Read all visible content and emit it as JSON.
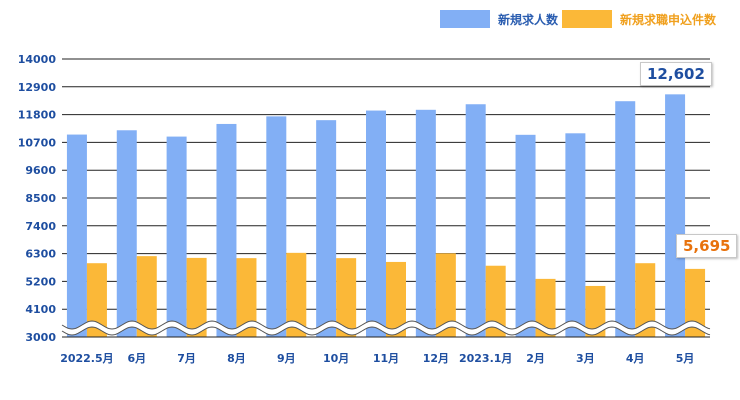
{
  "legend": {
    "job_offers": "新規求人数",
    "applications": "新規求職申込件数"
  },
  "callouts": {
    "job_offers_last": "12,602",
    "applications_last": "5,695"
  },
  "colors": {
    "job_offers": "#82aff5",
    "applications": "#fbb838",
    "axis_text": "#1e4ea0",
    "callout_blue": "#1e4ea0",
    "callout_orange": "#e8720c"
  },
  "chart_data": {
    "type": "bar",
    "categories": [
      "2022.5月",
      "6月",
      "7月",
      "8月",
      "9月",
      "10月",
      "11月",
      "12月",
      "2023.1月",
      "2月",
      "3月",
      "4月",
      "5月"
    ],
    "series": [
      {
        "name": "新規求人数",
        "values": [
          11010,
          11180,
          10930,
          11430,
          11730,
          11580,
          11960,
          11990,
          12210,
          11000,
          11060,
          12330,
          12602
        ]
      },
      {
        "name": "新規求職申込件数",
        "values": [
          5920,
          6200,
          6130,
          6120,
          6330,
          6120,
          5970,
          6310,
          5820,
          5300,
          5020,
          5920,
          5695
        ]
      }
    ],
    "yticks": [
      3000,
      4100,
      5200,
      6300,
      7400,
      8500,
      9600,
      10700,
      11800,
      12900,
      14000
    ],
    "ylim": [
      3000,
      14000
    ],
    "axis_break": true,
    "grid": true,
    "legend_position": "top-right"
  }
}
